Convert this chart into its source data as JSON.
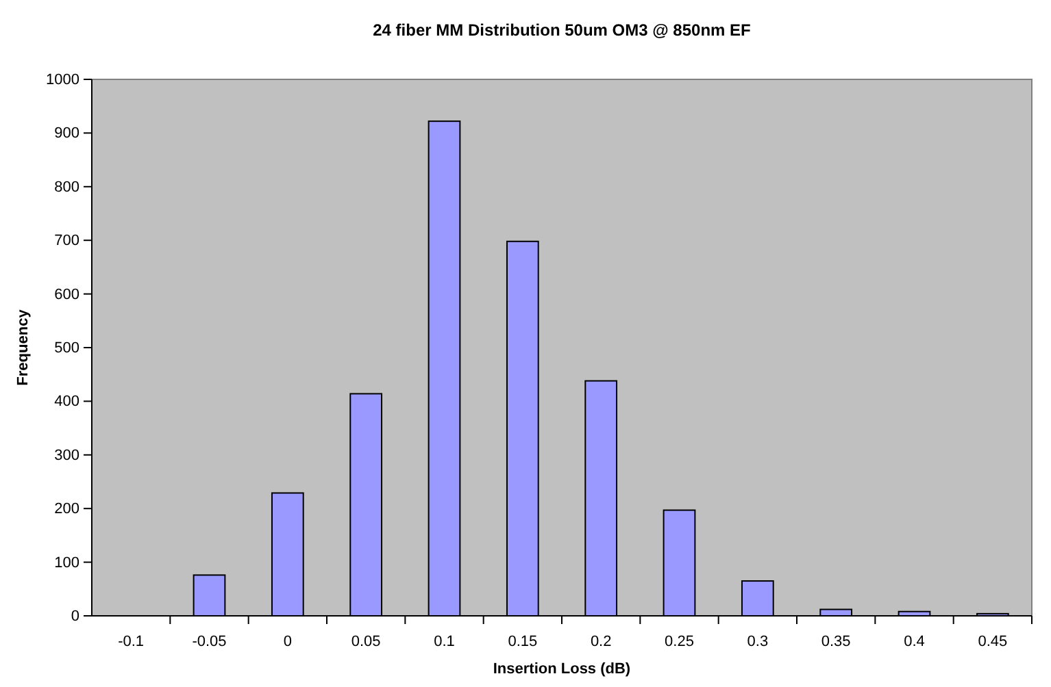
{
  "chart_data": {
    "type": "bar",
    "title": "24 fiber MM Distribution 50um OM3 @ 850nm EF",
    "xlabel": "Insertion Loss (dB)",
    "ylabel": "Frequency",
    "categories": [
      "-0.1",
      "-0.05",
      "0",
      "0.05",
      "0.1",
      "0.15",
      "0.2",
      "0.25",
      "0.3",
      "0.35",
      "0.4",
      "0.45"
    ],
    "values": [
      0,
      76,
      229,
      414,
      922,
      698,
      438,
      197,
      65,
      12,
      8,
      4
    ],
    "color": "#9999ff",
    "ylim": [
      0,
      1000
    ],
    "yticks": [
      0,
      100,
      200,
      300,
      400,
      500,
      600,
      700,
      800,
      900,
      1000
    ]
  }
}
